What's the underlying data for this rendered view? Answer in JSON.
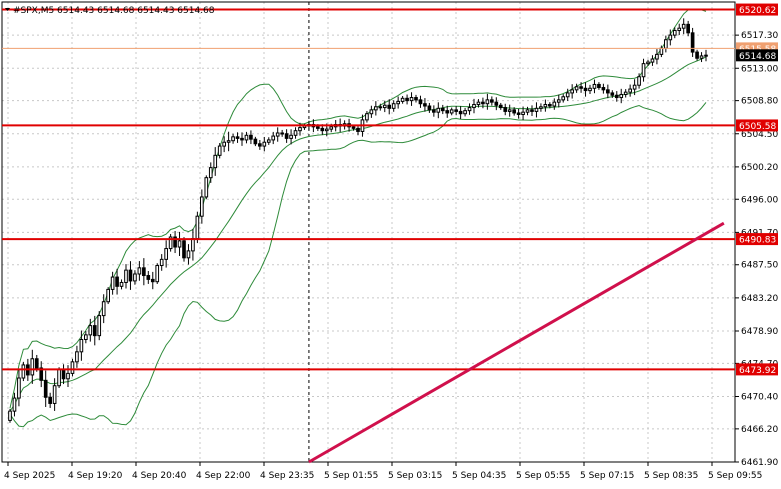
{
  "window": {
    "title": "#SPX,M5  6514.43 6514.68 6514.43 6514.68"
  },
  "colors": {
    "background": "#ffffff",
    "grid": "#c8c8c8",
    "candle": "#000000",
    "bollinger": "#2e8b3a",
    "level_line": "#e00000",
    "trend_line": "#d0104c",
    "bid_line": "#f0a070",
    "price_tag_bg": "#000000",
    "level_tag_bg": "#e00000"
  },
  "chart_data": {
    "type": "candlestick",
    "symbol": "#SPX",
    "timeframe": "M5",
    "ylim": [
      6461.9,
      6521.6
    ],
    "y_ticks": [
      6461.9,
      6466.2,
      6470.4,
      6474.7,
      6478.9,
      6483.2,
      6487.5,
      6491.7,
      6496.0,
      6500.2,
      6504.5,
      6508.8,
      6513.0,
      6517.3
    ],
    "y_tick_labels": [
      "6461.90",
      "6466.20",
      "6470.40",
      "6474.70",
      "6478.90",
      "6483.20",
      "6487.50",
      "6491.70",
      "6496.00",
      "6500.20",
      "6504.50",
      "6508.80",
      "6513.00",
      "6517.30"
    ],
    "x_labels": [
      "4 Sep 2025",
      "4 Sep 19:20",
      "4 Sep 20:40",
      "4 Sep 22:00",
      "4 Sep 23:35",
      "5 Sep 01:55",
      "5 Sep 03:15",
      "5 Sep 04:35",
      "5 Sep 05:55",
      "5 Sep 07:15",
      "5 Sep 08:35",
      "5 Sep 09:55"
    ],
    "horizontal_levels": [
      {
        "value": 6520.62,
        "label": "6520.62"
      },
      {
        "value": 6505.58,
        "label": "6505.58"
      },
      {
        "value": 6490.83,
        "label": "6490.83"
      },
      {
        "value": 6473.92,
        "label": "6473.92"
      }
    ],
    "bid_line": {
      "value": 6515.58,
      "label": "6515.58"
    },
    "current_price": {
      "value": 6514.68,
      "label": "6514.68"
    },
    "trend_line": {
      "start": [
        67,
        6461.9
      ],
      "end": [
        160,
        6492.9
      ]
    },
    "period_separator_index": 67,
    "closes": [
      6468.5,
      6470.2,
      6472.8,
      6474.5,
      6473.2,
      6475.3,
      6474.1,
      6472.5,
      6470.3,
      6469.5,
      6471.8,
      6473.9,
      6472.7,
      6473.4,
      6474.9,
      6476.2,
      6477.8,
      6478.4,
      6479.6,
      6478.3,
      6480.9,
      6482.7,
      6484.3,
      6485.9,
      6484.7,
      6485.2,
      6486.8,
      6485.4,
      6486.3,
      6487.1,
      6486.1,
      6485.6,
      6485.3,
      6487.4,
      6488.2,
      6489.6,
      6491.1,
      6489.8,
      6490.6,
      6488.4,
      6489.3,
      6490.9,
      6493.8,
      6496.3,
      6498.8,
      6500.1,
      6501.7,
      6502.9,
      6503.4,
      6503.6,
      6504.1,
      6503.9,
      6503.7,
      6504.3,
      6503.8,
      6503.2,
      6502.9,
      6503.4,
      6503.7,
      6504.2,
      6504.6,
      6504.5,
      6503.9,
      6504.3,
      6504.9,
      6505.3,
      6505.5,
      6505.7,
      6505.4,
      6505.2,
      6504.9,
      6505.1,
      6505.4,
      6505.7,
      6505.5,
      6505.8,
      6505.4,
      6505.2,
      6504.8,
      6506.3,
      6507.1,
      6507.6,
      6508.0,
      6507.9,
      6508.2,
      6507.8,
      6508.4,
      6508.7,
      6509.1,
      6508.8,
      6509.2,
      6508.9,
      6508.4,
      6508.1,
      6507.6,
      6507.3,
      6507.8,
      6507.5,
      6507.2,
      6507.6,
      6507.4,
      6507.1,
      6507.5,
      6507.9,
      6508.3,
      6508.6,
      6508.4,
      6508.9,
      6508.6,
      6508.2,
      6507.9,
      6507.4,
      6507.6,
      6507.2,
      6507.0,
      6507.3,
      6507.6,
      6507.4,
      6507.8,
      6508.0,
      6508.3,
      6508.1,
      6508.6,
      6508.9,
      6509.3,
      6509.8,
      6510.2,
      6510.6,
      6510.4,
      6510.1,
      6510.4,
      6510.9,
      6510.5,
      6510.2,
      6509.8,
      6509.5,
      6509.2,
      6509.6,
      6509.9,
      6510.3,
      6510.8,
      6511.9,
      6513.6,
      6513.8,
      6514.2,
      6514.8,
      6515.6,
      6516.7,
      6517.3,
      6517.9,
      6518.2,
      6518.7,
      6517.6,
      6515.1,
      6514.3,
      6514.6,
      6514.7
    ]
  }
}
